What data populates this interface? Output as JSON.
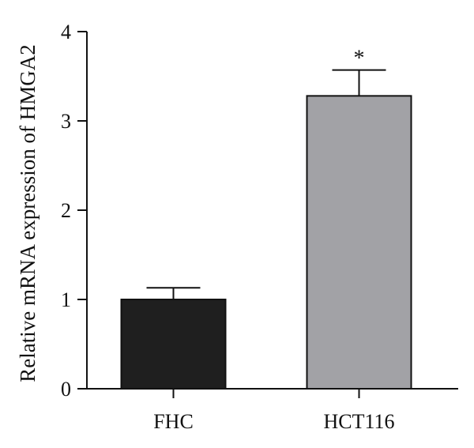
{
  "chart_data": {
    "type": "bar",
    "title": "",
    "xlabel": "",
    "ylabel": "Relative mRNA expression of HMGA2",
    "ylim": [
      0,
      4
    ],
    "yticks": [
      0,
      1,
      2,
      3,
      4
    ],
    "categories": [
      "FHC",
      "HCT116"
    ],
    "values": [
      1.0,
      3.28
    ],
    "error_upper": [
      0.13,
      0.29
    ],
    "bar_colors": [
      "#1f1f1f",
      "#a2a2a6"
    ],
    "annotations": [
      "",
      "*"
    ],
    "grid": false,
    "legend": "none"
  }
}
